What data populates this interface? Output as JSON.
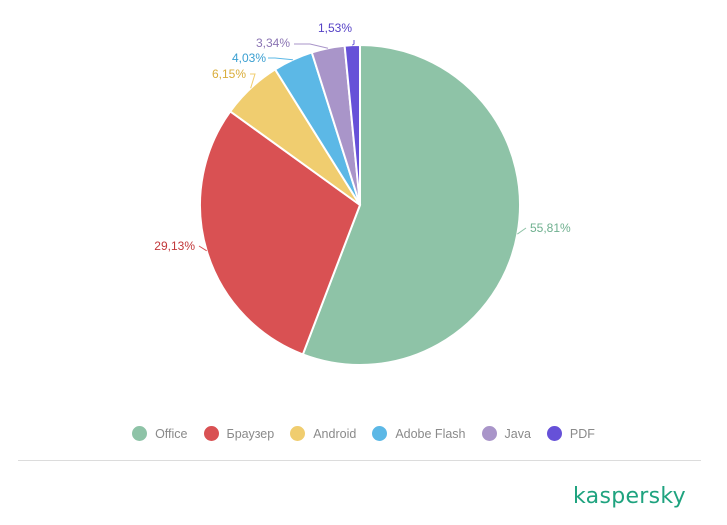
{
  "chart_data": {
    "type": "pie",
    "title": "",
    "start_angle_deg": 0,
    "direction": "clockwise",
    "slices": [
      {
        "name": "Office",
        "value": 55.81,
        "label": "55,81%",
        "color": "#8ec3a7"
      },
      {
        "name": "Браузер",
        "value": 29.13,
        "label": "29,13%",
        "color": "#d95153"
      },
      {
        "name": "Android",
        "value": 6.15,
        "label": "6,15%",
        "color": "#f0cd6f"
      },
      {
        "name": "Adobe Flash",
        "value": 4.03,
        "label": "4,03%",
        "color": "#5cb8e6"
      },
      {
        "name": "Java",
        "value": 3.34,
        "label": "3,34%",
        "color": "#a995c9"
      },
      {
        "name": "PDF",
        "value": 1.53,
        "label": "1,53%",
        "color": "#6651d8"
      }
    ],
    "legend_position": "bottom"
  },
  "brand": {
    "logo_text": "kaspersky",
    "logo_color": "#1fa37f"
  }
}
